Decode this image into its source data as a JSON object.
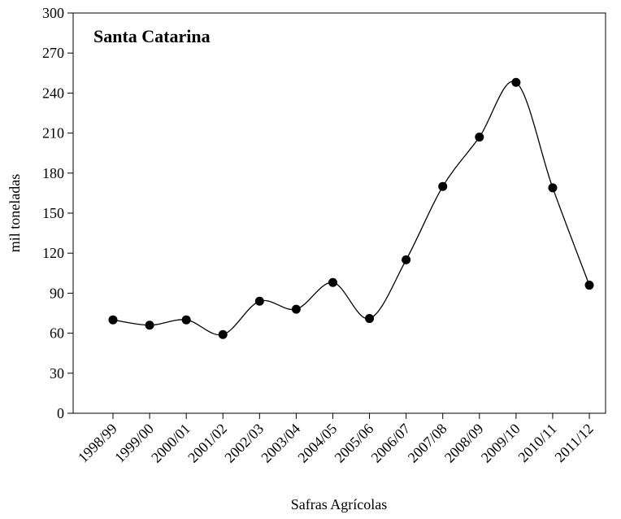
{
  "chart_data": {
    "type": "line",
    "title": "Santa Catarina",
    "xlabel": "Safras Agrícolas",
    "ylabel": "mil toneladas",
    "categories": [
      "1998/99",
      "1999/00",
      "2000/01",
      "2001/02",
      "2002/03",
      "2003/04",
      "2004/05",
      "2005/06",
      "2006/07",
      "2007/08",
      "2008/09",
      "2009/10",
      "2010/11",
      "2011/12"
    ],
    "values": [
      70,
      66,
      70,
      59,
      84,
      78,
      98,
      71,
      115,
      170,
      207,
      248,
      169,
      96
    ],
    "color": "#000000",
    "smooth": true,
    "ylim": [
      0,
      300
    ],
    "yticks": [
      0,
      30,
      60,
      90,
      120,
      150,
      180,
      210,
      240,
      270,
      300
    ]
  }
}
